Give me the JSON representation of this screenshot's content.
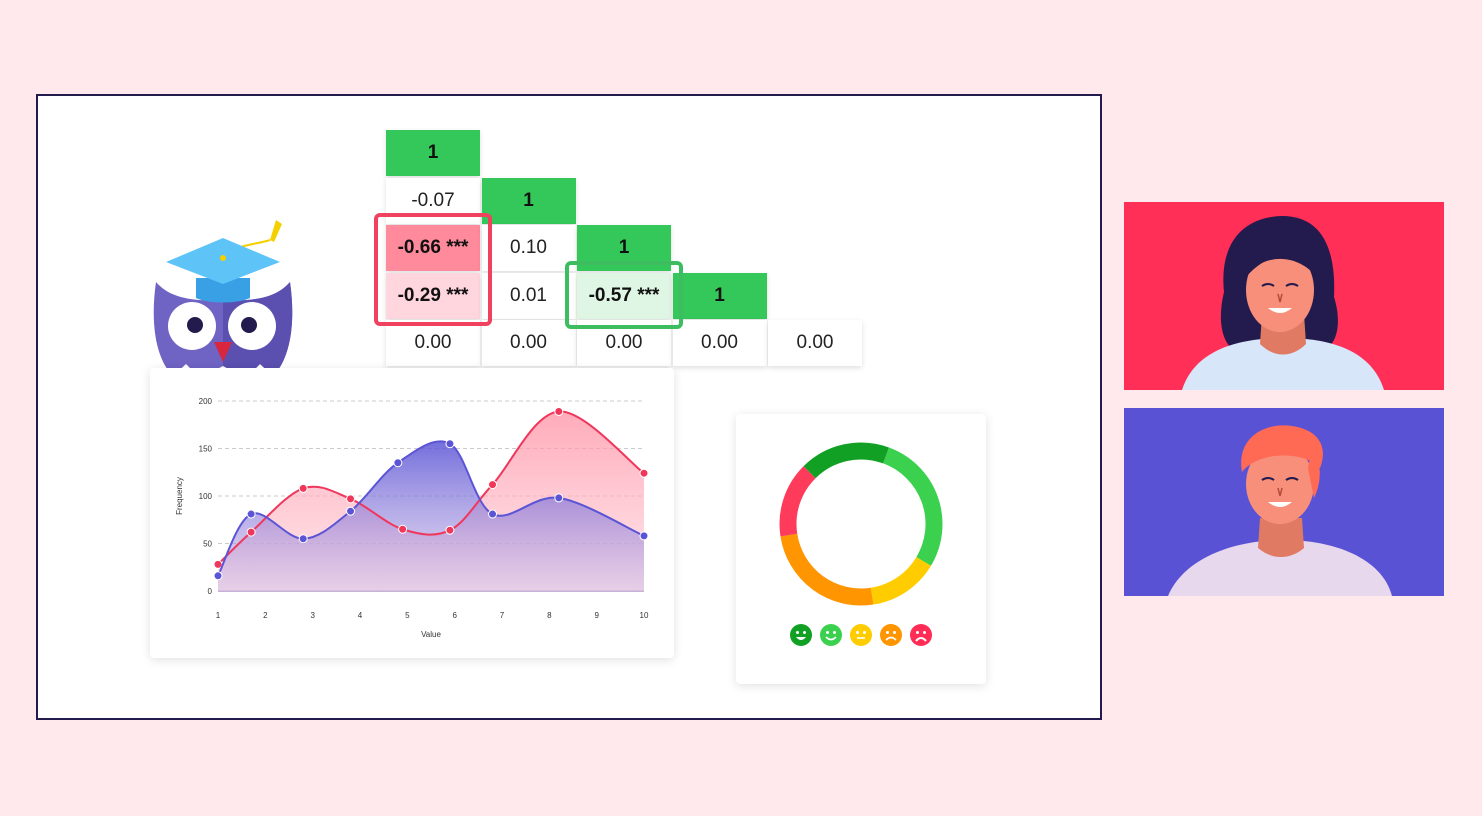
{
  "matrix": {
    "cells": [
      {
        "row": 0,
        "col": 0,
        "text": "1",
        "kind": "diag"
      },
      {
        "row": 1,
        "col": 0,
        "text": "-0.07",
        "kind": "plain"
      },
      {
        "row": 1,
        "col": 1,
        "text": "1",
        "kind": "diag"
      },
      {
        "row": 2,
        "col": 0,
        "text": "-0.66 ***",
        "kind": "neg-strong"
      },
      {
        "row": 2,
        "col": 1,
        "text": "0.10",
        "kind": "plain"
      },
      {
        "row": 2,
        "col": 2,
        "text": "1",
        "kind": "diag"
      },
      {
        "row": 3,
        "col": 0,
        "text": "-0.29 ***",
        "kind": "neg-light"
      },
      {
        "row": 3,
        "col": 1,
        "text": "0.01",
        "kind": "plain"
      },
      {
        "row": 3,
        "col": 2,
        "text": "-0.57 ***",
        "kind": "pos-light"
      },
      {
        "row": 3,
        "col": 3,
        "text": "1",
        "kind": "diag"
      },
      {
        "row": 4,
        "col": 0,
        "text": "0.00",
        "kind": "plain"
      },
      {
        "row": 4,
        "col": 1,
        "text": "0.00",
        "kind": "plain"
      },
      {
        "row": 4,
        "col": 2,
        "text": "0.00",
        "kind": "plain"
      },
      {
        "row": 4,
        "col": 3,
        "text": "0.00",
        "kind": "plain"
      },
      {
        "row": 4,
        "col": 4,
        "text": "0.00",
        "kind": "plain"
      }
    ]
  },
  "chart_data": {
    "type": "area",
    "xlabel": "Value",
    "ylabel": "Frequency",
    "x_ticks": [
      "1",
      "2",
      "3",
      "4",
      "5",
      "6",
      "7",
      "8",
      "9",
      "10"
    ],
    "y_ticks": [
      "0",
      "50",
      "100",
      "150",
      "200"
    ],
    "ylim": [
      0,
      200
    ],
    "xlim": [
      1,
      10
    ],
    "grid": true,
    "series": [
      {
        "color": "#f0365a",
        "points": [
          [
            1,
            28
          ],
          [
            1.7,
            62
          ],
          [
            2.8,
            108
          ],
          [
            3.8,
            97
          ],
          [
            4.9,
            65
          ],
          [
            5.9,
            64
          ],
          [
            6.8,
            112
          ],
          [
            8.2,
            189
          ],
          [
            10,
            124
          ]
        ]
      },
      {
        "color": "#5b55d6",
        "points": [
          [
            1,
            16
          ],
          [
            1.7,
            81
          ],
          [
            2.8,
            55
          ],
          [
            3.8,
            84
          ],
          [
            4.8,
            135
          ],
          [
            5.9,
            155
          ],
          [
            6.8,
            81
          ],
          [
            8.2,
            98
          ],
          [
            10,
            58
          ]
        ]
      }
    ]
  },
  "donut": {
    "segments": [
      {
        "color": "#3bd14f",
        "fraction": 0.28
      },
      {
        "color": "#ffcc00",
        "fraction": 0.14
      },
      {
        "color": "#ff9500",
        "fraction": 0.25
      },
      {
        "color": "#ff3b5c",
        "fraction": 0.15
      },
      {
        "color": "#12a024",
        "fraction": 0.18
      }
    ]
  },
  "emojis": [
    {
      "name": "very-happy",
      "color": "#12a024"
    },
    {
      "name": "happy",
      "color": "#3bd14f"
    },
    {
      "name": "neutral",
      "color": "#ffcc00"
    },
    {
      "name": "sad",
      "color": "#ff9500"
    },
    {
      "name": "very-sad",
      "color": "#ff2d55"
    }
  ],
  "avatars": [
    {
      "name": "woman",
      "bg": "#ff2f57"
    },
    {
      "name": "man",
      "bg": "#5a52d5"
    }
  ]
}
